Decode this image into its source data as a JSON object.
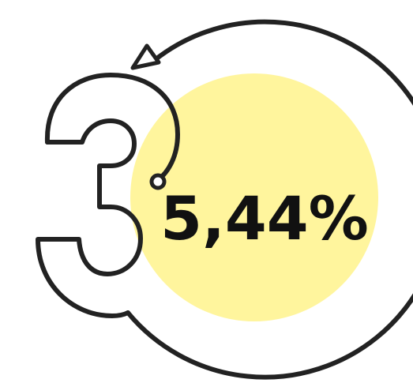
{
  "figure": {
    "value_text": "5,44%"
  }
}
